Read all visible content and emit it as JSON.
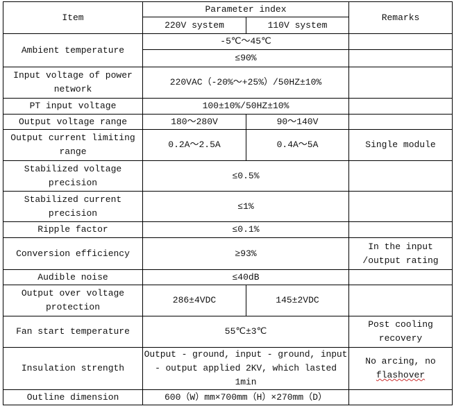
{
  "header": {
    "item": "Item",
    "parameter_index": "Parameter index",
    "col_220": "220V system",
    "col_110": "110V system",
    "remarks": "Remarks"
  },
  "rows": [
    {
      "item": "Ambient temperature",
      "values": [
        "-5℃～45℃",
        "≤90%"
      ],
      "remarks": ""
    },
    {
      "item": "Input voltage of power network",
      "value": "220VAC（-20%～+25%）/50HZ±10%",
      "remarks": ""
    },
    {
      "item": "PT input voltage",
      "value": "100±10%/50HZ±10%",
      "remarks": ""
    },
    {
      "item": "Output voltage range",
      "v220": "180～280V",
      "v110": "90～140V",
      "remarks": ""
    },
    {
      "item": "Output current limiting range",
      "v220": "0.2A～2.5A",
      "v110": "0.4A～5A",
      "remarks": "Single module"
    },
    {
      "item": "Stabilized voltage precision",
      "value": "≤0.5%",
      "remarks": ""
    },
    {
      "item": "Stabilized current precision",
      "value": "≤1%",
      "remarks": ""
    },
    {
      "item": "Ripple factor",
      "value": "≤0.1%",
      "remarks": ""
    },
    {
      "item": "Conversion efficiency",
      "value": "≥93%",
      "remarks": "In the input /output rating"
    },
    {
      "item": "Audible noise",
      "value": "≤40dB",
      "remarks": ""
    },
    {
      "item": "Output over voltage protection",
      "v220": "286±4VDC",
      "v110": "145±2VDC",
      "remarks": ""
    },
    {
      "item": "Fan start temperature",
      "value": "55℃±3℃",
      "remarks": "Post cooling recovery"
    },
    {
      "item": "Insulation strength",
      "value": "Output - ground, input - ground, input - output applied 2KV, which lasted 1min",
      "remarks_a": "No arcing, no",
      "remarks_b": "flashover"
    },
    {
      "item": "Outline dimension",
      "value": "600（W）mm×700mm（H）×270mm（D）",
      "remarks": ""
    }
  ]
}
